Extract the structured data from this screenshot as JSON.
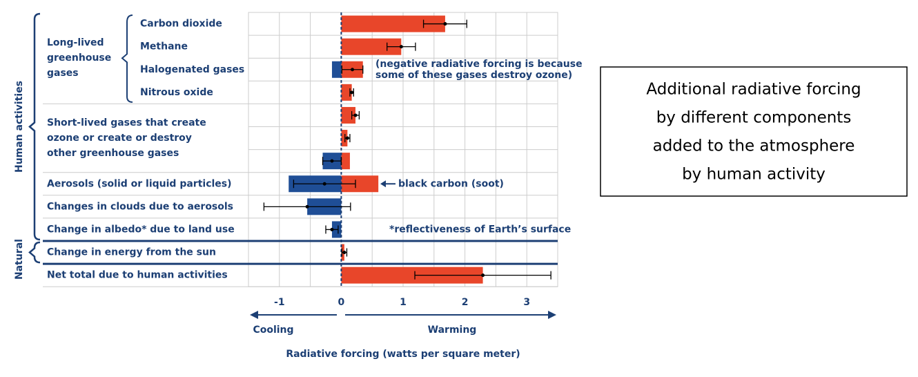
{
  "chart_data": {
    "type": "bar",
    "orientation": "horizontal",
    "categories": [
      "Carbon dioxide",
      "Methane",
      "Halogenated gases",
      "Nitrous oxide",
      null,
      null,
      null,
      "Aerosols (solid or liquid particles)",
      "Changes in clouds due to aerosols",
      "Change in albedo* due to land use",
      "Change in energy from the sun",
      "Net total due to human activities"
    ],
    "groups": [
      "Long-lived greenhouse gases",
      "Short-lived gases that create ozone or create or destroy other greenhouse gases"
    ],
    "sections": [
      "Human activities",
      "Natural"
    ],
    "series": [
      {
        "name": "Warming",
        "color": "#e8462a",
        "values": [
          1.68,
          0.97,
          0.35,
          0.17,
          0.23,
          0.1,
          0.14,
          0.6,
          null,
          null,
          0.05,
          2.29
        ]
      },
      {
        "name": "Cooling",
        "color": "#1f4e96",
        "values": [
          null,
          null,
          -0.15,
          null,
          null,
          null,
          -0.3,
          -0.85,
          -0.55,
          -0.15,
          null,
          null
        ]
      }
    ],
    "net": [
      1.68,
      0.97,
      0.18,
      0.17,
      0.23,
      0.1,
      -0.15,
      -0.27,
      -0.55,
      -0.15,
      0.05,
      2.29
    ],
    "error": [
      0.35,
      0.23,
      0.17,
      0.03,
      0.06,
      0.04,
      0.15,
      0.5,
      0.7,
      0.1,
      0.04,
      1.1
    ],
    "annotations": [
      "(negative radiative forcing is because",
      "some of these gases destroy ozone)",
      "black carbon (soot)",
      "*reflectiveness of Earth’s surface"
    ],
    "xlabel": "Radiative forcing (watts per square meter)",
    "xlim": [
      -1.5,
      3.5
    ],
    "xticks": [
      -1,
      0,
      1,
      2,
      3
    ],
    "grid_xticks": [
      -1.5,
      -0.5,
      0.5,
      1.5,
      2.5,
      3.5
    ],
    "grid": true,
    "caption": [
      "Additional radiative forcing",
      "by different components",
      "added to the atmosphere",
      "by human activity"
    ]
  }
}
